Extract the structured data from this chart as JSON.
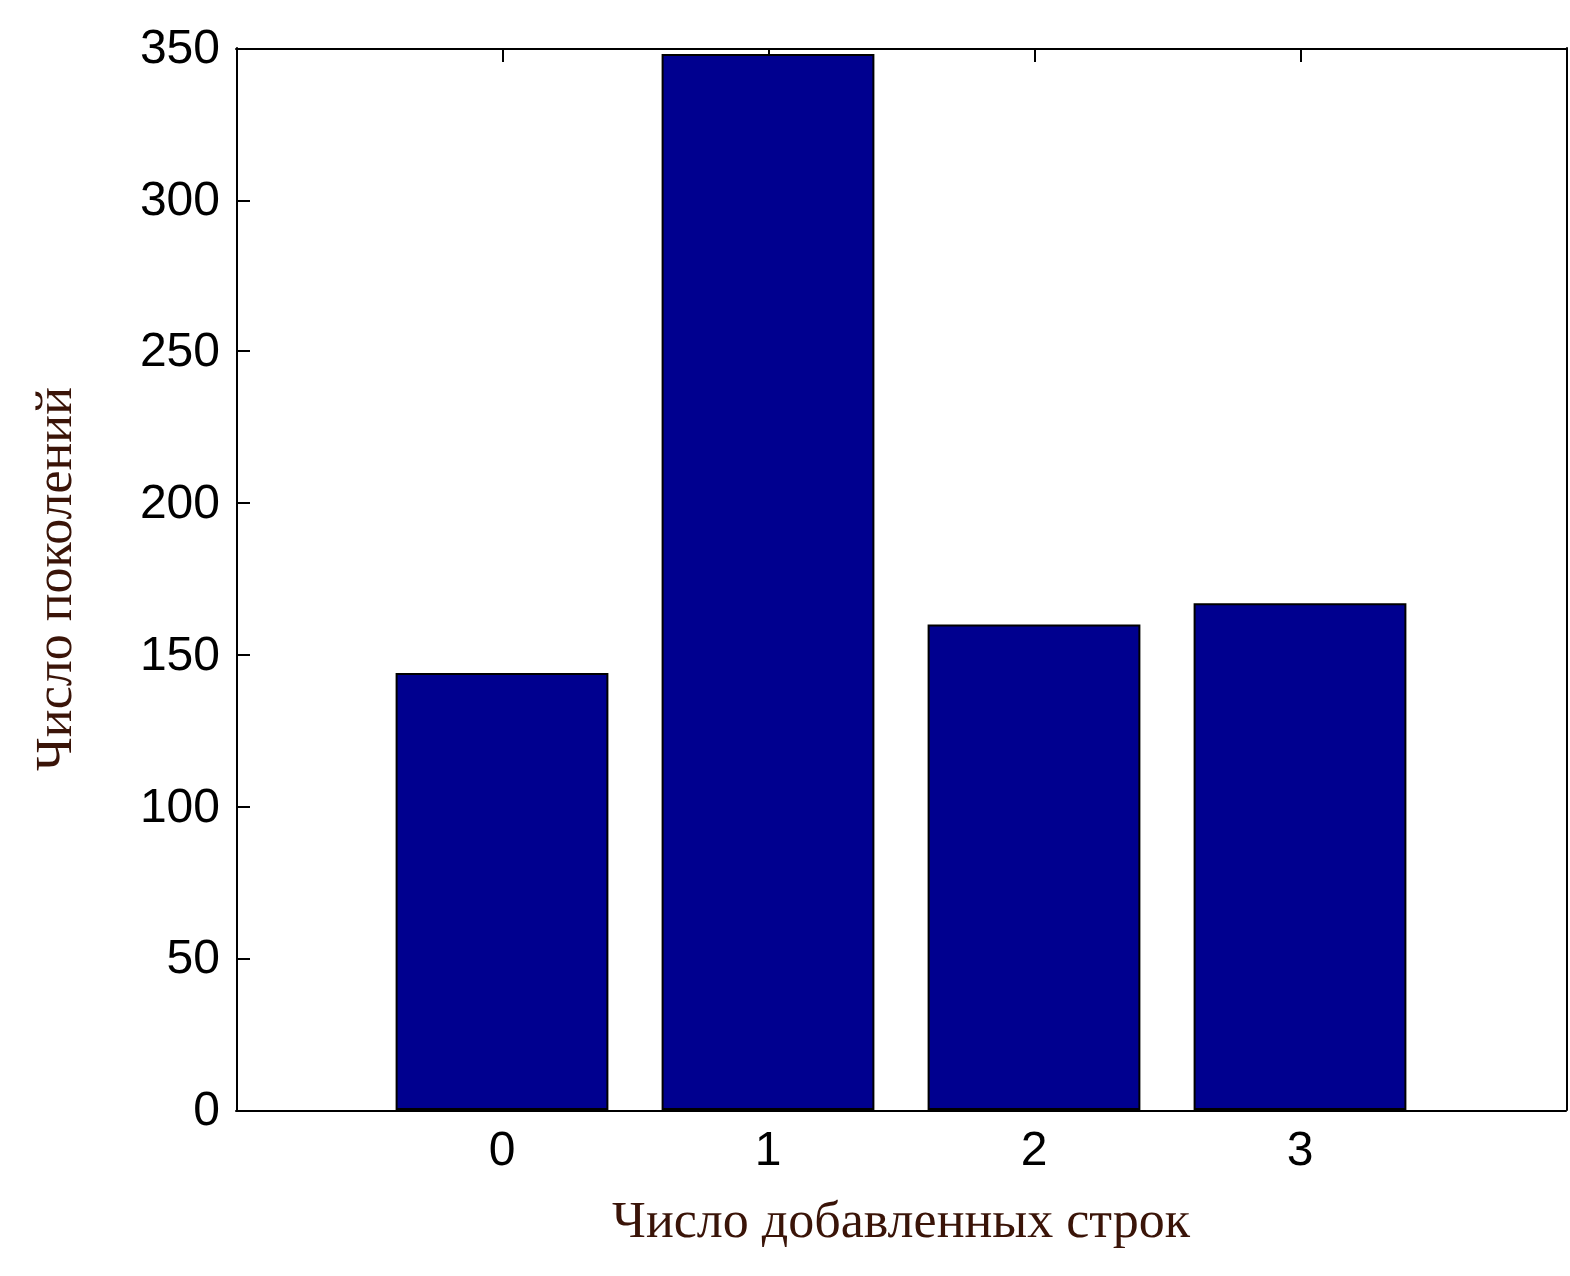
{
  "chart_data": {
    "type": "bar",
    "xlabel": "Число добавленных строк",
    "ylabel": "Число поколений",
    "x": [
      0,
      1,
      2,
      3
    ],
    "values": [
      144,
      348,
      160,
      167
    ],
    "color": "#00008f",
    "xlim": [
      -1,
      4
    ],
    "xticks": [
      0,
      1,
      2,
      3
    ],
    "ylim": [
      0,
      350
    ],
    "yticks": [
      0,
      50,
      100,
      150,
      200,
      250,
      300,
      350
    ]
  }
}
